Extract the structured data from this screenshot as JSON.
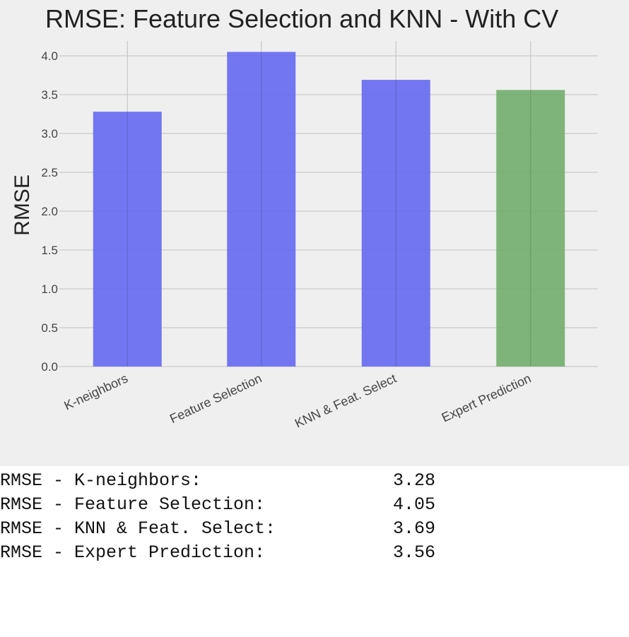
{
  "chart_data": {
    "type": "bar",
    "title": "RMSE: Feature Selection and KNN - With CV",
    "xlabel": "",
    "ylabel": "RMSE",
    "ylim": [
      0,
      4.1
    ],
    "yticks": [
      "0.0",
      "0.5",
      "1.0",
      "1.5",
      "2.0",
      "2.5",
      "3.0",
      "3.5",
      "4.0"
    ],
    "categories": [
      "K-neighbors",
      "Feature Selection",
      "KNN & Feat. Select",
      "Expert Prediction"
    ],
    "values": [
      3.28,
      4.05,
      3.69,
      3.56
    ],
    "bar_colors": [
      "#6b6ff0",
      "#6b6ff0",
      "#6b6ff0",
      "#77b072"
    ],
    "grid": true
  },
  "colors": {
    "background": "#efefef",
    "grid": "#c9c9c9",
    "blue_bar": "#6b6ff0",
    "green_bar": "#77b072"
  },
  "output_lines": [
    {
      "label": "RMSE - K-neighbors:",
      "value": "3.28"
    },
    {
      "label": "RMSE - Feature Selection:",
      "value": "4.05"
    },
    {
      "label": "RMSE - KNN & Feat. Select:",
      "value": "3.69"
    },
    {
      "label": "RMSE - Expert Prediction:",
      "value": "3.56"
    }
  ]
}
